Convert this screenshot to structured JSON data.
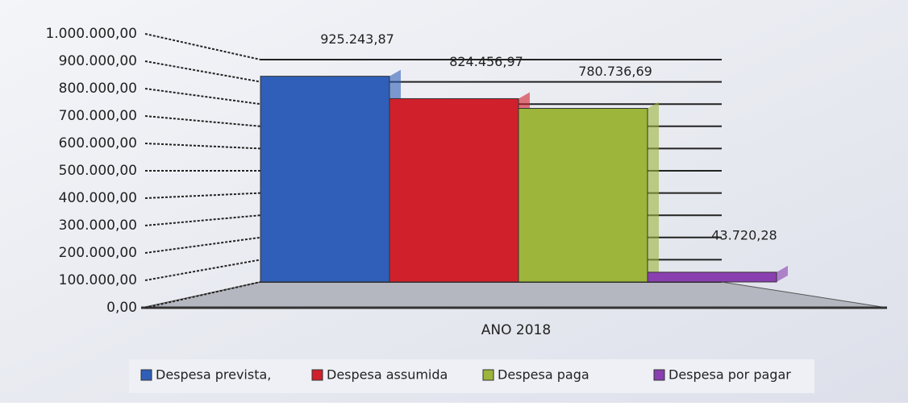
{
  "chart_data": {
    "type": "bar",
    "categories": [
      "ANO 2018"
    ],
    "series": [
      {
        "name": "Despesa prevista,",
        "color": "#2f5fb8",
        "values": [
          925243.87
        ],
        "value_labels": [
          "925.243,87"
        ]
      },
      {
        "name": "Despesa assumida",
        "color": "#d0202c",
        "values": [
          824456.97
        ],
        "value_labels": [
          "824.456,97"
        ]
      },
      {
        "name": "Despesa paga",
        "color": "#9cb53a",
        "values": [
          780736.69
        ],
        "value_labels": [
          "780.736,69"
        ]
      },
      {
        "name": "Despesa por pagar",
        "color": "#8a3fb0",
        "values": [
          43720.28
        ],
        "value_labels": [
          "43.720,28"
        ]
      }
    ],
    "ylim": [
      0,
      1000000
    ],
    "yticks": [
      {
        "value": 0,
        "label": "0,00"
      },
      {
        "value": 100000,
        "label": "100.000,00"
      },
      {
        "value": 200000,
        "label": "200.000,00"
      },
      {
        "value": 300000,
        "label": "300.000,00"
      },
      {
        "value": 400000,
        "label": "400.000,00"
      },
      {
        "value": 500000,
        "label": "500.000,00"
      },
      {
        "value": 600000,
        "label": "600.000,00"
      },
      {
        "value": 700000,
        "label": "700.000,00"
      },
      {
        "value": 800000,
        "label": "800.000,00"
      },
      {
        "value": 900000,
        "label": "900.000,00"
      },
      {
        "value": 1000000,
        "label": "1.000.000,00"
      }
    ],
    "grid": true,
    "legend": "bottom"
  }
}
